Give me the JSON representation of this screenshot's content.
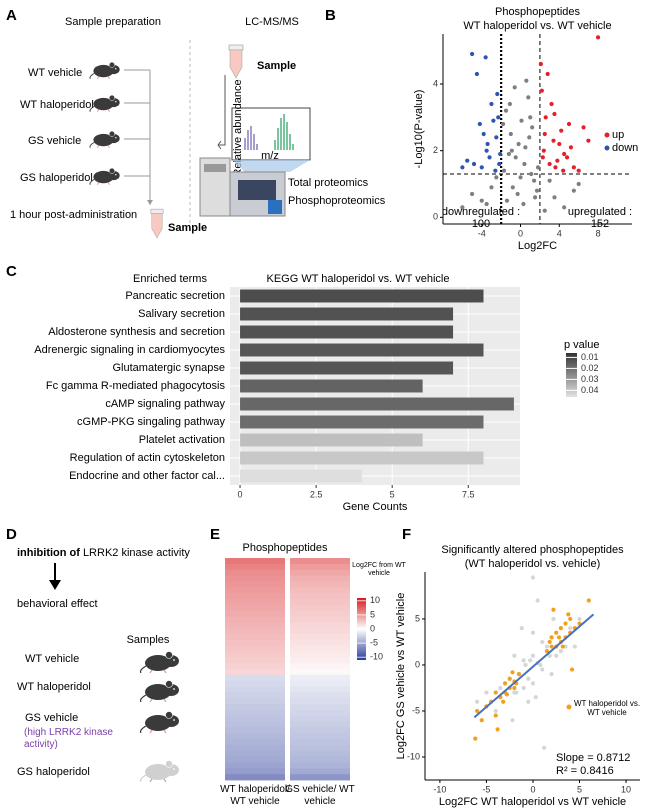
{
  "panel_a": {
    "label": "A",
    "col_titles": [
      "Sample preparation",
      "LC-MS/MS"
    ],
    "groups": [
      "WT vehicle",
      "WT haloperidol",
      "GS vehicle",
      "GS haloperidol"
    ],
    "time_note": "1 hour post-administration",
    "sample_labels": [
      "Sample",
      "Sample"
    ],
    "spectrum_axes": [
      "Relative abundance",
      "m/z"
    ],
    "outputs": [
      "Total proteomics",
      "Phosphoproteomics"
    ]
  },
  "panel_d": {
    "label": "D",
    "inhibition_bold": "inhibition of",
    "inhibition_rest": "LRRK2 kinase activity",
    "effect": "behavioral effect",
    "samples_title": "Samples",
    "groups": [
      "WT vehicle",
      "WT haloperidol",
      "GS vehicle",
      "GS haloperidol"
    ],
    "gs_note": "(high LRRK2 kinase activity)"
  },
  "chart_data": [
    {
      "type": "scatter",
      "panel_label": "B",
      "title": "Phosphopeptides",
      "subtitle": "WT haloperidol vs. WT vehicle",
      "x_label": "Log2FC",
      "y_label": "-Log10(P-value)",
      "xlim": [
        -8,
        11.5
      ],
      "ylim": [
        -0.2,
        5.5
      ],
      "xticks": [
        -4,
        0,
        4,
        8
      ],
      "yticks": [
        0,
        2,
        4
      ],
      "reference_lines": {
        "x": [
          -2,
          2
        ],
        "y": [
          1.3
        ]
      },
      "series": [
        {
          "color": "#7f7f7f",
          "x": [
            -1.5,
            -1,
            -0.5,
            0,
            0.5,
            1,
            1.5,
            -1.8,
            1.8,
            -0.8,
            0.8,
            -0.2,
            0.3,
            -1.2,
            1.2,
            0.6,
            -0.6,
            1.7,
            -1.7,
            0.1,
            -3,
            -4,
            3,
            4.5,
            -5,
            2.5,
            -2.5,
            3.5,
            -3.5,
            5.5,
            -6,
            6,
            0.4,
            -0.3,
            1.1,
            -1.1,
            0.9,
            -0.9,
            1.4,
            -1.4
          ],
          "values": [
            3.2,
            2.5,
            1.8,
            1.2,
            2.1,
            3.0,
            0.6,
            2.8,
            1.5,
            0.9,
            3.6,
            2.2,
            0.4,
            1.9,
            2.7,
            4.1,
            3.9,
            0.8,
            1.4,
            2.9,
            0.9,
            0.5,
            1.1,
            0.3,
            0.7,
            0.2,
            1.2,
            0.6,
            0.4,
            0.8,
            0.3,
            1.0,
            1.6,
            0.7,
            1.3,
            3.4,
            2.4,
            2.0,
            1.1,
            0.5
          ]
        },
        {
          "name": "up",
          "color": "#e4202a",
          "x": [
            2.2,
            2.5,
            3,
            3.5,
            4,
            4.5,
            5,
            5.5,
            6,
            2.8,
            3.2,
            3.8,
            4.2,
            2.4,
            2.6,
            3.4,
            4.8,
            5.2,
            2.1,
            3.6,
            6.5,
            7,
            8,
            2.3,
            4.4
          ],
          "values": [
            3.8,
            2.5,
            1.6,
            3.1,
            2.2,
            1.9,
            2.8,
            1.5,
            1.4,
            4.3,
            3.4,
            1.7,
            2.6,
            2.0,
            3.0,
            2.3,
            1.8,
            2.1,
            4.6,
            1.5,
            2.7,
            2.3,
            5.4,
            1.8,
            1.4
          ]
        },
        {
          "name": "down",
          "color": "#2f55b0",
          "x": [
            -2.2,
            -2.5,
            -3,
            -3.5,
            -4,
            -4.5,
            -5,
            -2.8,
            -3.2,
            -3.8,
            -2.4,
            -2.6,
            -3.4,
            -4.2,
            -5.5,
            -2.1,
            -3.6,
            -6,
            -2.3,
            -4.8
          ],
          "values": [
            1.6,
            2.4,
            3.4,
            2.0,
            1.5,
            4.3,
            4.9,
            2.9,
            1.8,
            2.5,
            3.7,
            1.4,
            2.2,
            2.8,
            1.7,
            1.9,
            4.8,
            1.5,
            3.0,
            1.6
          ]
        }
      ],
      "annotations": [
        {
          "text": "downregulated :",
          "count": "100",
          "color": "#2f55b0"
        },
        {
          "text": "upregulated :",
          "count": "152",
          "color": "#e4202a"
        }
      ]
    },
    {
      "type": "hbar",
      "panel_label": "C",
      "y_header": "Enriched terms",
      "title": "KEGG  WT haloperidol vs. WT vehicle",
      "x_label": "Gene Counts",
      "categories": [
        "Pancreatic secretion",
        "Salivary secretion",
        "Aldosterone synthesis and secretion",
        "Adrenergic signaling in cardiomyocytes",
        "Glutamatergic synapse",
        "Fc gamma R-mediated phagocytosis",
        "cAMP signaling pathway",
        "cGMP-PKG singaling pathway",
        "Platelet activation",
        "Regulation of actin cytoskeleton",
        "Endocrine and other factor cal..."
      ],
      "label_colors": [
        "#000000",
        "#000000",
        "#000000",
        "#000000",
        "#7a78c0",
        "#000000",
        "#7a78c0",
        "#000000",
        "#000000",
        "#7a78c0",
        "#000000"
      ],
      "values": [
        8,
        7,
        7,
        8,
        7,
        6,
        9,
        8,
        6,
        8,
        4
      ],
      "p_values": [
        0.012,
        0.013,
        0.013,
        0.014,
        0.014,
        0.017,
        0.018,
        0.019,
        0.038,
        0.04,
        0.045
      ],
      "xlim": [
        -0.33,
        9.2
      ],
      "xticks": [
        0,
        2.5,
        5,
        7.5
      ],
      "legend_title": "p value",
      "plim": [
        0.006,
        0.046
      ],
      "pticks": [
        0.01,
        0.02,
        0.03,
        0.04
      ],
      "p_colors": [
        "#333333",
        "#e2e2e2"
      ],
      "grid": true
    },
    {
      "type": "heatmap",
      "panel_label": "E",
      "title": "Phosphopeptides",
      "columns": [
        {
          "name": "WT haloperidol/ WT vehicle",
          "values": [
            6.5,
            6,
            5.5,
            5.2,
            5,
            4.8,
            4.6,
            4.4,
            4.2,
            4,
            3.8,
            3.6,
            3.4,
            3.2,
            3,
            2.8,
            2.6,
            2.4,
            2.2,
            2,
            -2,
            -2.2,
            -2.4,
            -2.6,
            -2.8,
            -3,
            -3.2,
            -3.4,
            -3.6,
            -3.8,
            -4,
            -4.2,
            -4.4,
            -4.6,
            -4.8,
            -5.2,
            -5.6,
            -6.5
          ]
        },
        {
          "name": "GS vehicle/ WT vehicle",
          "values": [
            5.5,
            4.8,
            4.2,
            3.8,
            3.5,
            3.2,
            3,
            2.8,
            2.6,
            2.4,
            2.2,
            2,
            1.8,
            1.6,
            1.4,
            1.2,
            1,
            0.8,
            0.5,
            0.3,
            -1,
            -1.2,
            -1.5,
            -1.8,
            -2,
            -2.2,
            -2.4,
            -2.6,
            -2.8,
            -3,
            -3.2,
            -3.4,
            -3.6,
            -3.8,
            -4,
            -4.3,
            -4.8,
            -6
          ]
        }
      ],
      "colorbar_title": "Log2FC from WT vehicle",
      "clim": [
        -11,
        11
      ],
      "cticks": [
        10,
        5,
        0,
        -5,
        -10
      ],
      "colors": [
        "#2b3d9a",
        "#ffffff",
        "#d7191c"
      ]
    },
    {
      "type": "scatter",
      "panel_label": "F",
      "title": "Significantly altered phosphopeptides",
      "subtitle": "(WT haloperidol vs. vehicle)",
      "x_label": "Log2FC WT haloperidol vs WT vehicle",
      "y_label": "Log2FC GS vehicle vs WT vehicle",
      "xlim": [
        -11.6,
        11.5
      ],
      "ylim": [
        -12.5,
        10.1
      ],
      "xticks": [
        -10,
        -5,
        0,
        5,
        10
      ],
      "yticks": [
        -10,
        -5,
        0,
        5
      ],
      "series": [
        {
          "color": "#d6d6d6",
          "x": [
            -3,
            -2,
            -1,
            0,
            1,
            2,
            3,
            -1.5,
            0.5,
            1.5,
            -0.5,
            2.5,
            -2.5,
            0,
            1,
            -1,
            4,
            -4,
            2,
            -2,
            0.8,
            -0.8,
            3.5,
            -3.5,
            0,
            0.3,
            -0.3,
            1.8,
            -1.8,
            5,
            -5,
            -6,
            4.5,
            2.2,
            -2.2,
            0.5,
            -0.5,
            1.2,
            -1.2,
            0
          ],
          "values": [
            -2,
            -3,
            0.5,
            1,
            -0.5,
            3,
            1.5,
            -1,
            0.2,
            2,
            -1.5,
            1,
            -1.5,
            -2,
            2.5,
            -2.5,
            4,
            -5,
            -1,
            1,
            0,
            0,
            2,
            -2.5,
            3.5,
            -3.5,
            0.5,
            1,
            -3,
            5,
            -3,
            -4,
            2,
            5,
            -6,
            7,
            -4,
            -9,
            4,
            9.5
          ]
        },
        {
          "name": "WT haloperidol vs. WT vehicle",
          "color": "#f0a01e",
          "x": [
            -6,
            -5,
            -4.5,
            -4,
            -3.5,
            -3,
            -3,
            -2.5,
            -2.5,
            -2,
            -2,
            -1.5,
            -4,
            -3.2,
            -2.8,
            -5.5,
            1.5,
            2,
            2,
            2.5,
            2.5,
            3,
            3,
            3.5,
            3.5,
            4,
            4,
            4.5,
            5,
            2.8,
            3.2,
            3.8,
            6,
            1.8,
            -1.8,
            4.2,
            -3.8,
            2.2,
            -6.2,
            -2.2
          ],
          "values": [
            -5,
            -4.5,
            -4,
            -3,
            -3.5,
            -2,
            -3,
            -2.5,
            -1.5,
            -1.8,
            -2.5,
            -1,
            -5.5,
            -4,
            -3.2,
            -6,
            1.5,
            2,
            3,
            2,
            3.5,
            2.5,
            4,
            3,
            4.5,
            3.5,
            5,
            4,
            4.5,
            3,
            2,
            5.5,
            7,
            2.5,
            -2,
            -0.5,
            -7,
            6,
            -8,
            -0.8
          ]
        }
      ],
      "fit_line": {
        "color": "#4a6fc0",
        "x": [
          -6.3,
          6.5
        ],
        "y": [
          -5.7,
          5.5
        ]
      },
      "annotations": [
        "Slope = 0.8712",
        "R² = 0.8416"
      ]
    }
  ]
}
